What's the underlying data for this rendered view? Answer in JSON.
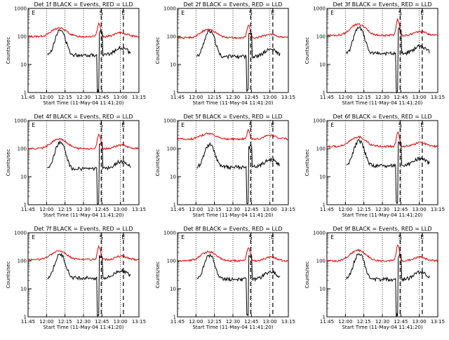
{
  "chart_data": {
    "type": "line",
    "panel_grid": "3x3",
    "x_axis": {
      "tick_labels": [
        "11:45",
        "12:00",
        "12:15",
        "12:30",
        "12:45",
        "13:00",
        "13:15"
      ],
      "xlabel": "Start Time (11-May-04 11:41:20)"
    },
    "y_axis": {
      "scale": "log",
      "tick_labels": [
        "1",
        "10",
        "100",
        "1000"
      ],
      "ylabel": "Counts/sec",
      "ylim": [
        1,
        1000
      ]
    },
    "markers": [
      "E",
      "S",
      "E"
    ],
    "series_colors": {
      "events": "#000000",
      "lld": "#e00000"
    },
    "panels": [
      {
        "title": "Det 1f BLACK = Events, RED = LLD",
        "lld_base": 100,
        "events_base": 40,
        "lld_peak": 280,
        "events_peak": 160,
        "events_low": 20
      },
      {
        "title": "Det 2f BLACK = Events, RED = LLD",
        "lld_base": 90,
        "events_base": 35,
        "lld_peak": 250,
        "events_peak": 150,
        "events_low": 20
      },
      {
        "title": "Det 3f BLACK = Events, RED = LLD",
        "lld_base": 110,
        "events_base": 45,
        "lld_peak": 400,
        "events_peak": 200,
        "events_low": 30
      },
      {
        "title": "Det 4f BLACK = Events, RED = LLD",
        "lld_base": 100,
        "events_base": 35,
        "lld_peak": 330,
        "events_peak": 160,
        "events_low": 25
      },
      {
        "title": "Det 5f BLACK = Events, RED = LLD",
        "lld_base": 220,
        "events_base": 40,
        "lld_peak": 450,
        "events_peak": 130,
        "events_low": 20
      },
      {
        "title": "Det 6f BLACK = Events, RED = LLD",
        "lld_base": 120,
        "events_base": 45,
        "lld_peak": 380,
        "events_peak": 180,
        "events_low": 30
      },
      {
        "title": "Det 7f BLACK = Events, RED = LLD",
        "lld_base": 110,
        "events_base": 45,
        "lld_peak": 320,
        "events_peak": 160,
        "events_low": 30
      },
      {
        "title": "Det 8f BLACK = Events, RED = LLD",
        "lld_base": 100,
        "events_base": 40,
        "lld_peak": 300,
        "events_peak": 150,
        "events_low": 20
      },
      {
        "title": "Det 9f BLACK = Events, RED = LLD",
        "lld_base": 100,
        "events_base": 40,
        "lld_peak": 350,
        "events_peak": 170,
        "events_low": 25
      }
    ]
  }
}
